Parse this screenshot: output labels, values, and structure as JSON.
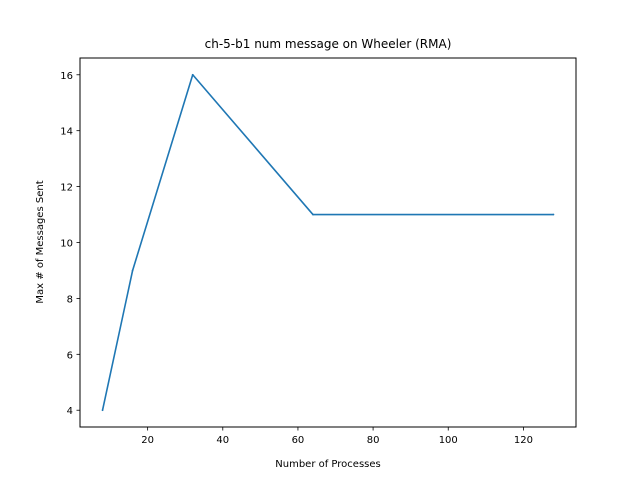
{
  "chart_data": {
    "type": "line",
    "title": "ch-5-b1 num message on Wheeler (RMA)",
    "xlabel": "Number of Processes",
    "ylabel": "Max # of Messages Sent",
    "xlim": [
      2,
      134
    ],
    "ylim": [
      3.4,
      16.6
    ],
    "xticks": [
      20,
      40,
      60,
      80,
      100,
      120
    ],
    "yticks": [
      4,
      6,
      8,
      10,
      12,
      14,
      16
    ],
    "grid": false,
    "series": [
      {
        "color": "#1f77b4",
        "x": [
          8,
          16,
          32,
          64,
          128
        ],
        "y": [
          4,
          9,
          16,
          11,
          11
        ]
      }
    ]
  }
}
